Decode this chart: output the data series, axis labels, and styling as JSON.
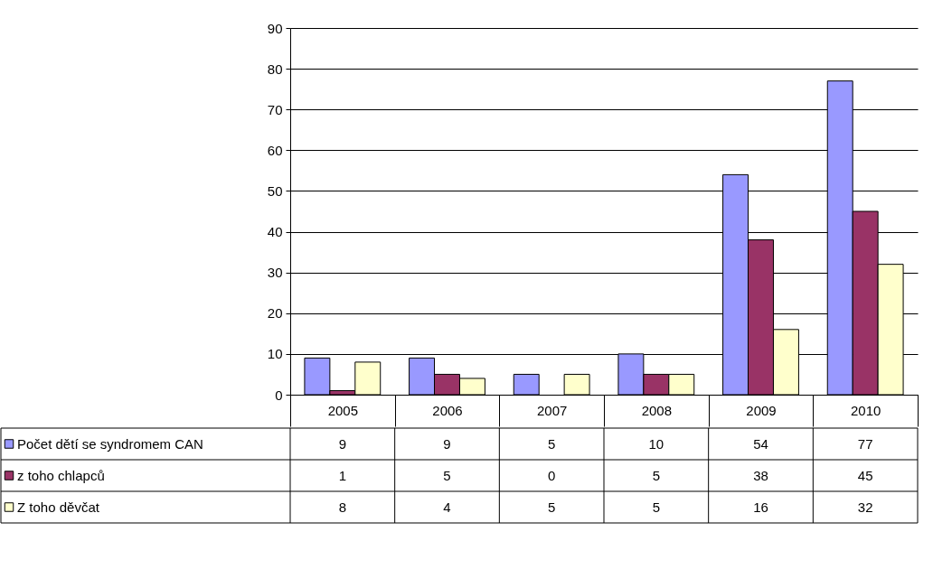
{
  "chart_data": {
    "type": "bar",
    "categories": [
      "2005",
      "2006",
      "2007",
      "2008",
      "2009",
      "2010"
    ],
    "series": [
      {
        "name": "Počet dětí se syndromem CAN",
        "color": "#9999ff",
        "values": [
          9,
          9,
          5,
          10,
          54,
          77
        ]
      },
      {
        "name": "z toho chlapců",
        "color": "#993366",
        "values": [
          1,
          5,
          0,
          5,
          38,
          45
        ]
      },
      {
        "name": "Z toho děvčat",
        "color": "#ffffcc",
        "values": [
          8,
          4,
          5,
          5,
          16,
          32
        ]
      }
    ],
    "ylim": [
      0,
      90
    ],
    "yticks": [
      0,
      10,
      20,
      30,
      40,
      50,
      60,
      70,
      80,
      90
    ],
    "grid": "y",
    "legend": "bottom",
    "data_labels": true
  }
}
